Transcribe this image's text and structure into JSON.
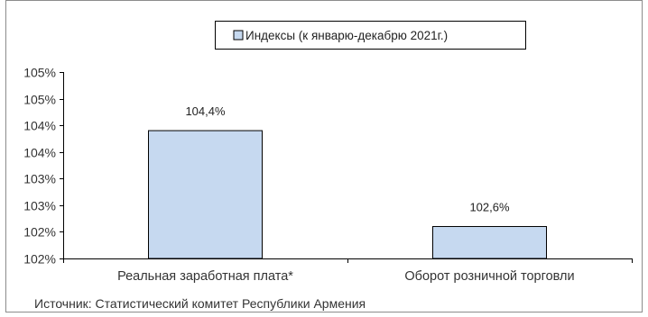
{
  "chart_data": {
    "type": "bar",
    "legend": {
      "entry": "Индексы (к январю-декабрю 2021г.)",
      "position": "top-center",
      "color": "#c6d9f0"
    },
    "categories": [
      "Реальная заработная плата*",
      "Оборот розничной торговли"
    ],
    "series": [
      {
        "name": "Индексы (к январю-декабрю 2021г.)",
        "values": [
          104.4,
          102.6
        ],
        "labels": [
          "104,4%",
          "102,6%"
        ]
      }
    ],
    "y_axis": {
      "min": 102,
      "max": 105.5,
      "tick_values": [
        102,
        102.5,
        103,
        103.5,
        104,
        104.5,
        105,
        105.5
      ],
      "tick_labels": [
        "102%",
        "102%",
        "103%",
        "103%",
        "104%",
        "104%",
        "105%",
        "105%"
      ]
    },
    "grid": false,
    "bar_color": "#c6d9f0",
    "bar_stroke": "#000000"
  },
  "source_note": "Источник: Статистический комитет Республики Армения"
}
